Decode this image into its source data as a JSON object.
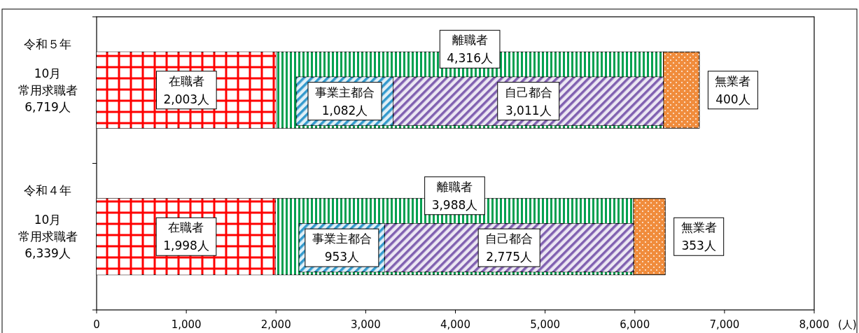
{
  "chart_data": {
    "type": "bar",
    "orientation": "horizontal",
    "xlabel": "(人)",
    "categories": [
      "令和５年",
      "令和４年"
    ],
    "totals": [
      "10月常用求職者6,719人",
      "10月常用求職者6,339人"
    ],
    "xlim": [
      0,
      8000
    ],
    "xticks": [
      0,
      {
        "value": 1000,
        "label": "1,000"
      },
      {
        "value": 2000,
        "label": "2,000"
      },
      {
        "value": 3000,
        "label": "3,000"
      },
      {
        "value": 4000,
        "label": "4,000"
      },
      {
        "value": 5000,
        "label": "5,000"
      },
      {
        "value": 6000,
        "label": "6,000"
      },
      {
        "value": 7000,
        "label": "7,000"
      },
      {
        "value": 8000,
        "label": "8,000"
      }
    ],
    "series": [
      {
        "name": "在職者",
        "color": "#ff0000",
        "values": [
          2003,
          1998
        ],
        "base": [
          0,
          0
        ],
        "value_labels": [
          "2,003人",
          "1,998人"
        ]
      },
      {
        "name": "離職者",
        "color": "#00a050",
        "values": [
          4316,
          3988
        ],
        "base": [
          2003,
          1998
        ],
        "value_labels": [
          "4,316人",
          "3,988人"
        ]
      },
      {
        "name": "無業者",
        "color": "#f08c3c",
        "values": [
          400,
          353
        ],
        "base": [
          6319,
          5986
        ],
        "value_labels": [
          "400人",
          "353人"
        ]
      },
      {
        "name": "事業主都合",
        "color": "#3399cc",
        "values": [
          1082,
          953
        ],
        "base": [
          2226,
          2258
        ],
        "value_labels": [
          "1,082人",
          "953人"
        ]
      },
      {
        "name": "自己都合",
        "color": "#8060b0",
        "values": [
          3011,
          2775
        ],
        "base": [
          3308,
          3211
        ],
        "value_labels": [
          "3,011人",
          "2,775人"
        ]
      }
    ]
  }
}
